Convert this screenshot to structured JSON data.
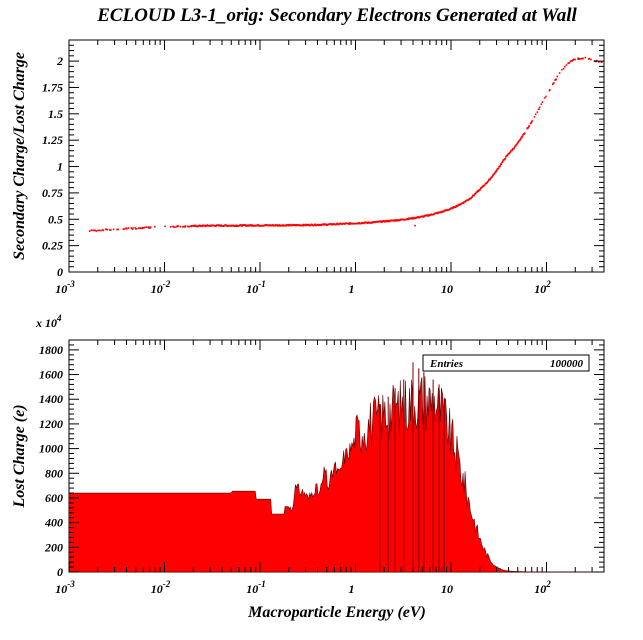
{
  "figure": {
    "title": "ECLOUD L3-1_orig: Secondary Electrons Generated at Wall",
    "xlabel": "Macroparticle Energy (eV)"
  },
  "chart_data": [
    {
      "type": "scatter",
      "ylabel": "Secondary Charge/Lost Charge",
      "xscale": "log",
      "xlim": [
        0.001,
        400
      ],
      "ylim": [
        0,
        2.2
      ],
      "x_tick_labels": [
        {
          "value": 0.001,
          "base": "10",
          "exp": "-3"
        },
        {
          "value": 0.01,
          "base": "10",
          "exp": "-2"
        },
        {
          "value": 0.1,
          "base": "10",
          "exp": "-1"
        },
        {
          "value": 1,
          "base": "1",
          "exp": ""
        },
        {
          "value": 10,
          "base": "10",
          "exp": ""
        },
        {
          "value": 100,
          "base": "10",
          "exp": "2"
        }
      ],
      "y_ticks": [
        0,
        0.25,
        0.5,
        0.75,
        1,
        1.25,
        1.5,
        1.75,
        2
      ],
      "y_tick_labels": [
        "0",
        "0.25",
        "0.5",
        "0.75",
        "1",
        "1.25",
        "1.5",
        "1.75",
        "2"
      ],
      "color": "#ff0000",
      "points": [
        [
          0.0016,
          0.39
        ],
        [
          0.002,
          0.395
        ],
        [
          0.003,
          0.405
        ],
        [
          0.005,
          0.415
        ],
        [
          0.008,
          0.425
        ],
        [
          0.012,
          0.43
        ],
        [
          0.02,
          0.435
        ],
        [
          0.03,
          0.44
        ],
        [
          0.05,
          0.44
        ],
        [
          0.08,
          0.442
        ],
        [
          0.12,
          0.442
        ],
        [
          0.2,
          0.443
        ],
        [
          0.3,
          0.445
        ],
        [
          0.5,
          0.45
        ],
        [
          0.8,
          0.458
        ],
        [
          1.0,
          0.462
        ],
        [
          1.5,
          0.47
        ],
        [
          2,
          0.48
        ],
        [
          3,
          0.495
        ],
        [
          4,
          0.51
        ],
        [
          5,
          0.525
        ],
        [
          6,
          0.54
        ],
        [
          8,
          0.57
        ],
        [
          10,
          0.6
        ],
        [
          13,
          0.65
        ],
        [
          16,
          0.7
        ],
        [
          20,
          0.78
        ],
        [
          25,
          0.87
        ],
        [
          30,
          0.96
        ],
        [
          35,
          1.05
        ],
        [
          40,
          1.12
        ],
        [
          45,
          1.17
        ],
        [
          50,
          1.22
        ],
        [
          60,
          1.33
        ],
        [
          70,
          1.42
        ],
        [
          80,
          1.52
        ],
        [
          90,
          1.6
        ],
        [
          100,
          1.68
        ],
        [
          120,
          1.8
        ],
        [
          140,
          1.9
        ],
        [
          170,
          1.98
        ],
        [
          200,
          2.02
        ],
        [
          250,
          2.03
        ],
        [
          300,
          2.01
        ],
        [
          380,
          1.99
        ],
        [
          4.2,
          0.44
        ]
      ]
    },
    {
      "type": "bar",
      "ylabel": "Lost Charge (e)",
      "y_multiplier_base": "x 10",
      "y_multiplier_exp": "4",
      "xscale": "log",
      "xlim": [
        0.001,
        400
      ],
      "ylim": [
        0,
        1880
      ],
      "x_tick_labels": [
        {
          "value": 0.001,
          "base": "10",
          "exp": "-3"
        },
        {
          "value": 0.01,
          "base": "10",
          "exp": "-2"
        },
        {
          "value": 0.1,
          "base": "10",
          "exp": "-1"
        },
        {
          "value": 1,
          "base": "1",
          "exp": ""
        },
        {
          "value": 10,
          "base": "10",
          "exp": ""
        },
        {
          "value": 100,
          "base": "10",
          "exp": "2"
        }
      ],
      "y_ticks": [
        0,
        200,
        400,
        600,
        800,
        1000,
        1200,
        1400,
        1600,
        1800
      ],
      "y_tick_labels": [
        "0",
        "200",
        "400",
        "600",
        "800",
        "1000",
        "1200",
        "1400",
        "1600",
        "1800"
      ],
      "color": "#ff0000",
      "stats": {
        "label": "Entries",
        "value": "100000"
      },
      "profile": [
        [
          0.001,
          640
        ],
        [
          0.05,
          640
        ],
        [
          0.051,
          655
        ],
        [
          0.09,
          655
        ],
        [
          0.091,
          590
        ],
        [
          0.13,
          590
        ],
        [
          0.131,
          470
        ],
        [
          0.18,
          470
        ],
        [
          0.181,
          530
        ],
        [
          0.22,
          530
        ],
        [
          0.23,
          700
        ],
        [
          0.3,
          650
        ],
        [
          0.32,
          600
        ],
        [
          0.38,
          710
        ],
        [
          0.42,
          640
        ],
        [
          0.48,
          850
        ],
        [
          0.52,
          700
        ],
        [
          0.6,
          880
        ],
        [
          0.68,
          800
        ],
        [
          0.75,
          950
        ],
        [
          0.85,
          1000
        ],
        [
          1.0,
          1100
        ],
        [
          1.2,
          1170
        ],
        [
          1.4,
          1200
        ],
        [
          1.7,
          1230
        ],
        [
          2.0,
          1280
        ],
        [
          2.5,
          1310
        ],
        [
          3.0,
          1340
        ],
        [
          3.5,
          1370
        ],
        [
          4.0,
          1390
        ],
        [
          5.0,
          1400
        ],
        [
          6.0,
          1390
        ],
        [
          7.0,
          1370
        ],
        [
          8.0,
          1300
        ],
        [
          9.0,
          1200
        ],
        [
          10,
          1100
        ],
        [
          12,
          900
        ],
        [
          14,
          700
        ],
        [
          16,
          520
        ],
        [
          18,
          380
        ],
        [
          20,
          270
        ],
        [
          23,
          160
        ],
        [
          26,
          90
        ],
        [
          30,
          40
        ],
        [
          35,
          15
        ],
        [
          45,
          5
        ],
        [
          60,
          2
        ],
        [
          100,
          1
        ],
        [
          200,
          0
        ],
        [
          400,
          0
        ]
      ],
      "spikes": [
        [
          4.0,
          1700
        ],
        [
          4.6,
          1650
        ],
        [
          3.2,
          1560
        ],
        [
          5.2,
          1620
        ],
        [
          6.5,
          1560
        ],
        [
          2.6,
          1490
        ],
        [
          7.5,
          1520
        ],
        [
          2.2,
          1420
        ],
        [
          1.8,
          1360
        ],
        [
          8.5,
          1400
        ]
      ]
    }
  ]
}
